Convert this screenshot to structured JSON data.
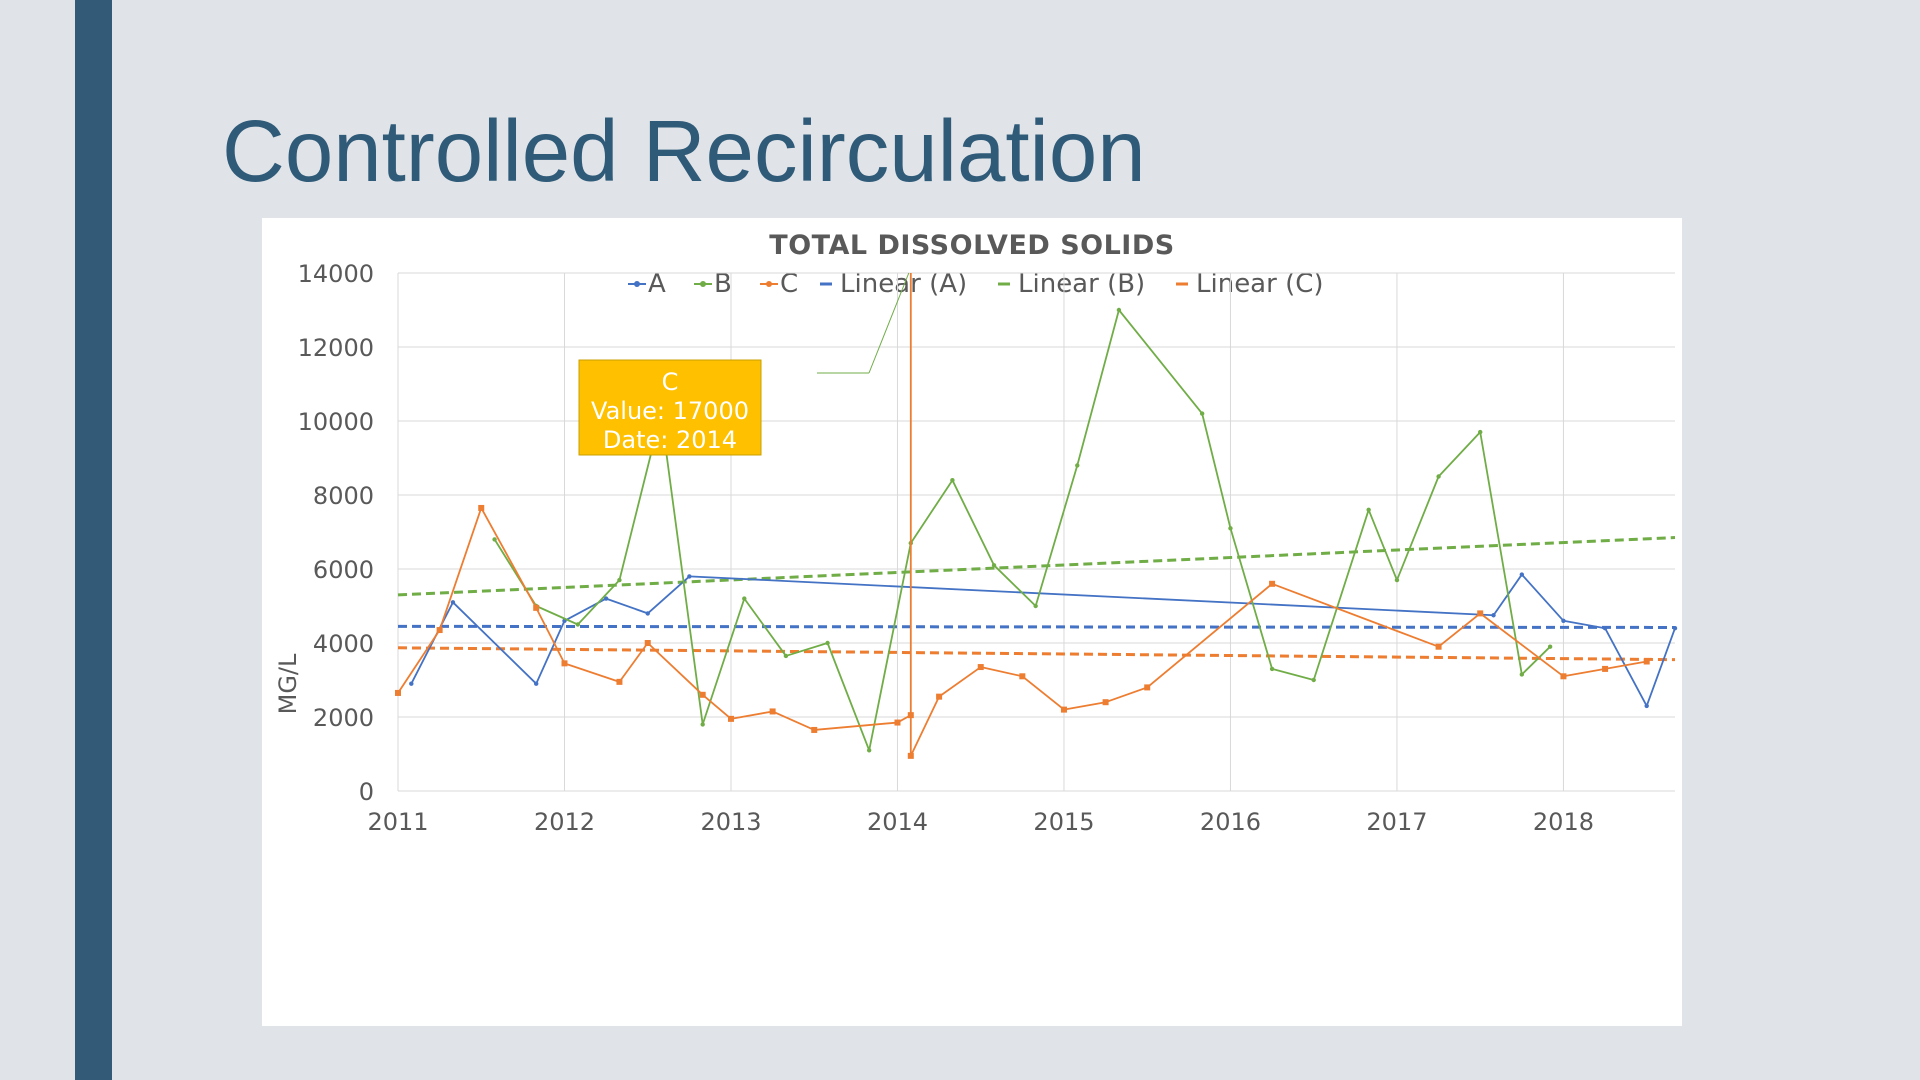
{
  "slide": {
    "title": "Controlled Recirculation"
  },
  "colors": {
    "sidebar": "#335a76",
    "title": "#2f5a78",
    "series_A": "#4472c4",
    "series_B": "#70ad47",
    "series_C": "#ed7d31",
    "tooltip_bg": "#ffc000"
  },
  "tooltip": {
    "series": "C",
    "value_label": "Value: 17000",
    "date_label": "Date: 2014"
  },
  "chart_data": {
    "type": "line",
    "title": "TOTAL DISSOLVED SOLIDS",
    "xlabel": "",
    "ylabel": "MG/L",
    "xlim": [
      2011,
      2018.67
    ],
    "ylim": [
      0,
      14000
    ],
    "x_ticks": [
      2011,
      2012,
      2013,
      2014,
      2015,
      2016,
      2017,
      2018
    ],
    "y_ticks": [
      0,
      2000,
      4000,
      6000,
      8000,
      10000,
      12000,
      14000
    ],
    "grid": true,
    "legend_position": "top",
    "legend": [
      "A",
      "B",
      "C",
      "Linear (A)",
      "Linear (B)",
      "Linear (C)"
    ],
    "series": [
      {
        "name": "A",
        "color": "#4472c4",
        "x": [
          2011.08,
          2011.33,
          2011.83,
          2012.0,
          2012.25,
          2012.5,
          2012.75,
          2017.58,
          2017.75,
          2018.0,
          2018.25,
          2018.5,
          2018.67
        ],
        "values": [
          2900,
          5100,
          2900,
          4600,
          5200,
          4800,
          5800,
          4750,
          5850,
          4600,
          4400,
          2300,
          4400
        ]
      },
      {
        "name": "B",
        "color": "#70ad47",
        "x": [
          2011.58,
          2011.83,
          2012.08,
          2012.33,
          2012.58,
          2012.83,
          2013.08,
          2013.33,
          2013.58,
          2013.83,
          2014.08,
          2014.33,
          2014.58,
          2014.83,
          2015.08,
          2015.33,
          2015.83,
          2016.0,
          2016.25,
          2016.5,
          2016.83,
          2017.0,
          2017.25,
          2017.5,
          2017.75,
          2017.92
        ],
        "values": [
          6800,
          5000,
          4500,
          5700,
          10200,
          1800,
          5200,
          3650,
          4000,
          1100,
          6700,
          8400,
          6100,
          5000,
          8800,
          13000,
          10200,
          7100,
          3300,
          3000,
          7600,
          5700,
          8500,
          9700,
          3150,
          3900
        ]
      },
      {
        "name": "C",
        "color": "#ed7d31",
        "x": [
          2011.0,
          2011.25,
          2011.5,
          2011.83,
          2012.0,
          2012.33,
          2012.5,
          2012.83,
          2013.0,
          2013.25,
          2013.5,
          2014.0,
          2014.08,
          2014.08,
          2014.08,
          2014.25,
          2014.5,
          2014.75,
          2015.0,
          2015.25,
          2015.5,
          2016.25,
          2017.25,
          2017.5,
          2018.0,
          2018.25,
          2018.5
        ],
        "values": [
          2650,
          4350,
          7650,
          4950,
          3450,
          2950,
          4000,
          2600,
          1950,
          2150,
          1650,
          1850,
          2050,
          17000,
          950,
          2550,
          3350,
          3100,
          2200,
          2400,
          2800,
          5600,
          3900,
          4800,
          3100,
          3300,
          3500
        ]
      }
    ],
    "trendlines": [
      {
        "name": "Linear (A)",
        "color": "#4472c4",
        "x": [
          2011,
          2018.67
        ],
        "values": [
          4450,
          4420
        ]
      },
      {
        "name": "Linear (B)",
        "color": "#70ad47",
        "x": [
          2011,
          2018.67
        ],
        "values": [
          5300,
          6850
        ]
      },
      {
        "name": "Linear (C)",
        "color": "#ed7d31",
        "x": [
          2011,
          2018.67
        ],
        "values": [
          3870,
          3550
        ]
      }
    ]
  }
}
